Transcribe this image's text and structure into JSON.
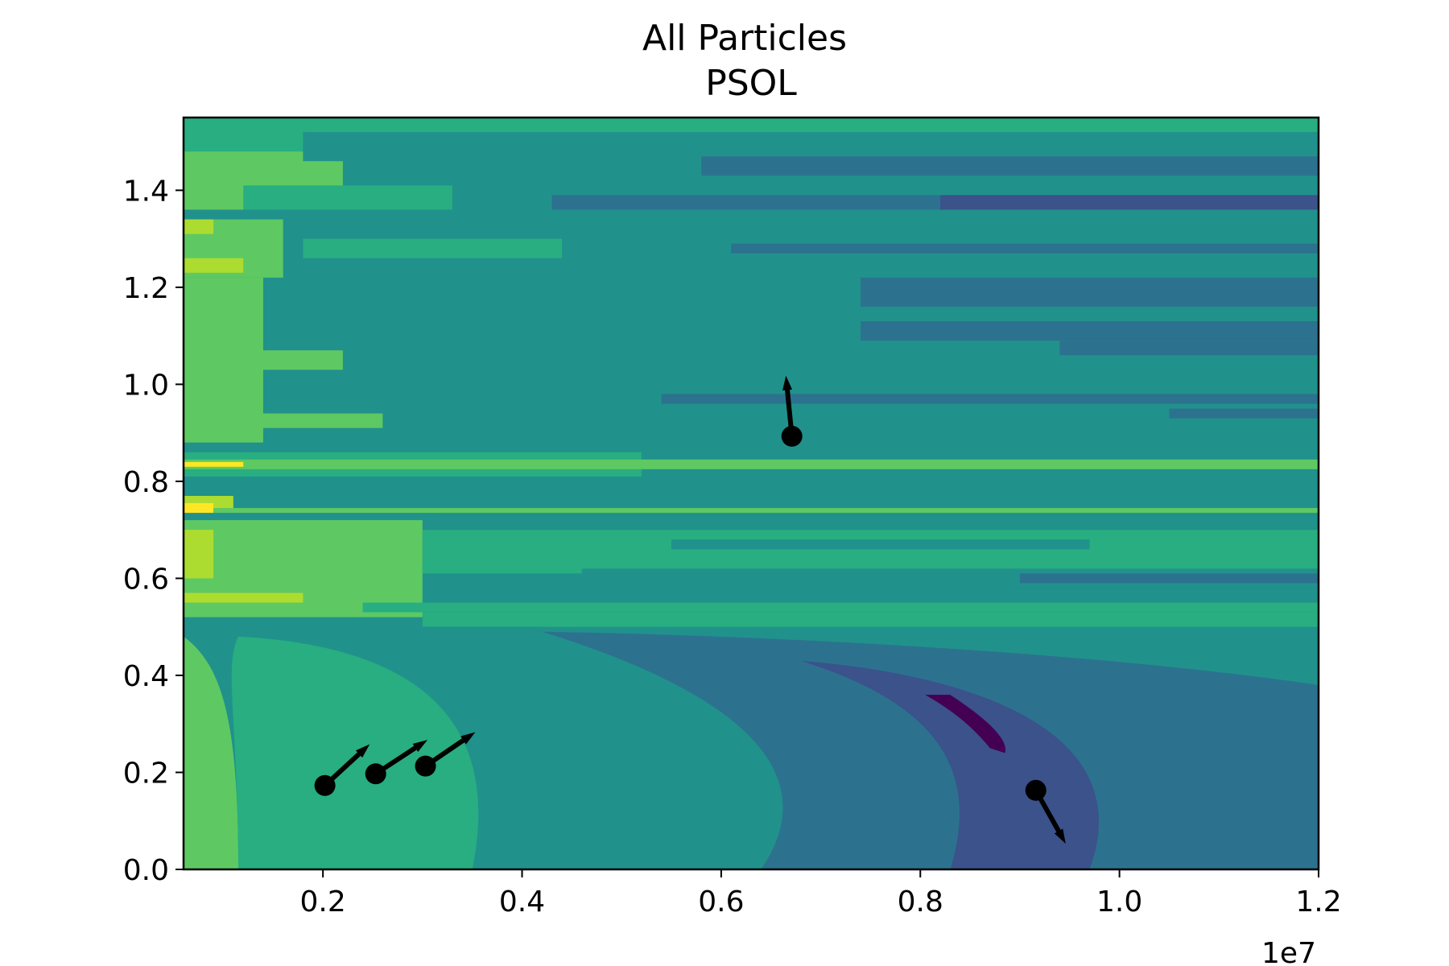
{
  "chart_data": {
    "type": "contour",
    "title_lines": [
      "All Particles",
      "PSOL"
    ],
    "x_ticks": [
      "0.2",
      "0.4",
      "0.6",
      "0.8",
      "1.0",
      "1.2"
    ],
    "x_tick_values": [
      0.2,
      0.4,
      0.6,
      0.8,
      1.0,
      1.2
    ],
    "y_ticks": [
      "0.0",
      "0.2",
      "0.4",
      "0.6",
      "0.8",
      "1.0",
      "1.2",
      "1.4"
    ],
    "y_tick_values": [
      0.0,
      0.2,
      0.4,
      0.6,
      0.8,
      1.0,
      1.2,
      1.4
    ],
    "x_offset_label": "1e7",
    "xlim": [
      0.06,
      1.2
    ],
    "ylim": [
      0.0,
      1.55
    ],
    "colormap": [
      "#440154",
      "#3b528b",
      "#2c728e",
      "#21918c",
      "#28ae80",
      "#5ec962",
      "#addc30",
      "#fde725"
    ],
    "particles": [
      {
        "x": 0.202,
        "y": 0.173,
        "vx": 0.045,
        "vy": 0.085
      },
      {
        "x": 0.253,
        "y": 0.197,
        "vx": 0.052,
        "vy": 0.07
      },
      {
        "x": 0.303,
        "y": 0.213,
        "vx": 0.05,
        "vy": 0.07
      },
      {
        "x": 0.671,
        "y": 0.893,
        "vx": -0.006,
        "vy": 0.125
      },
      {
        "x": 0.916,
        "y": 0.163,
        "vx": 0.03,
        "vy": -0.11
      }
    ]
  }
}
